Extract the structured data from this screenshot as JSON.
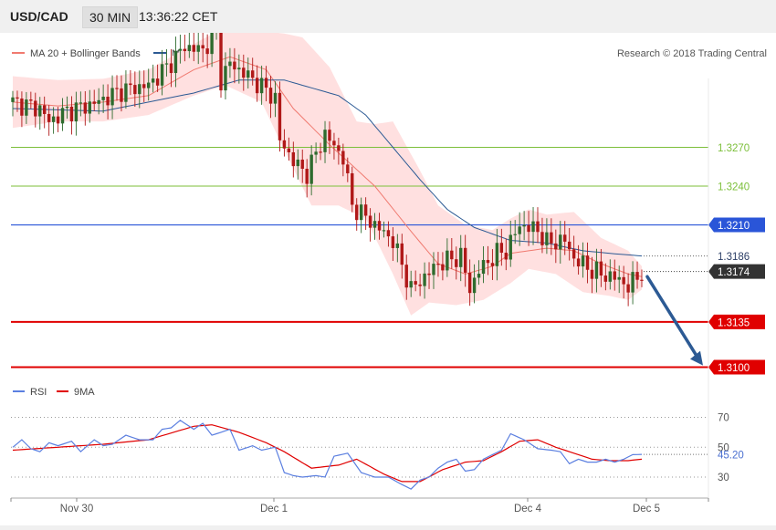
{
  "header": {
    "symbol": "USD/CAD",
    "interval": "30 MIN",
    "time": "13:36:22 CET"
  },
  "legend": {
    "ma20_bb": "MA 20 + Bollinger Bands",
    "ma50": "MA 50",
    "copyright": "Research © 2018 Trading Central"
  },
  "rsi_legend": {
    "rsi": "RSI",
    "ma9": "9MA"
  },
  "colors": {
    "candle_up": "#2e6b2e",
    "candle_down": "#b01818",
    "band": "#ffe0e0",
    "ma20": "#f07a70",
    "ma50": "#2c5a94",
    "support": "#e00000",
    "resistance": "#7cbf3a",
    "pivot": "#2a55d8",
    "forecast": "#2c5a94",
    "rsi": "#5b7fe0",
    "rsi_ma": "#e00000"
  },
  "chart_data": [
    {
      "type": "candlestick",
      "title": "USD/CAD 30 MIN",
      "x_ticks": [
        "Nov 30",
        "Dec 1",
        "Dec 4",
        "Dec 5"
      ],
      "ylim": [
        1.3092,
        1.3378
      ],
      "horizontal_levels": [
        {
          "value": 1.327,
          "label": "1.3270",
          "kind": "resistance"
        },
        {
          "value": 1.324,
          "label": "1.3240",
          "kind": "resistance"
        },
        {
          "value": 1.321,
          "label": "1.3210",
          "kind": "pivot"
        },
        {
          "value": 1.3186,
          "label": "1.3186",
          "kind": "ma50"
        },
        {
          "value": 1.3174,
          "label": "1.3174",
          "kind": "last"
        },
        {
          "value": 1.3135,
          "label": "1.3135",
          "kind": "support"
        },
        {
          "value": 1.31,
          "label": "1.3100",
          "kind": "support"
        }
      ],
      "forecast": {
        "from": 1.317,
        "to": 1.3102
      },
      "candle_keypoints": [
        [
          0,
          1.3305
        ],
        [
          6,
          1.33
        ],
        [
          8,
          1.329
        ],
        [
          12,
          1.3298
        ],
        [
          18,
          1.3304
        ],
        [
          24,
          1.3314
        ],
        [
          30,
          1.3318
        ],
        [
          34,
          1.3332
        ],
        [
          38,
          1.3348
        ],
        [
          42,
          1.3345
        ],
        [
          45,
          1.336
        ],
        [
          46,
          1.3322
        ],
        [
          48,
          1.3335
        ],
        [
          52,
          1.3325
        ],
        [
          54,
          1.332
        ],
        [
          58,
          1.3308
        ],
        [
          59,
          1.3275
        ],
        [
          63,
          1.3255
        ],
        [
          65,
          1.325
        ],
        [
          69,
          1.328
        ],
        [
          73,
          1.3262
        ],
        [
          75,
          1.3225
        ],
        [
          80,
          1.321
        ],
        [
          84,
          1.3198
        ],
        [
          88,
          1.316
        ],
        [
          94,
          1.318
        ],
        [
          99,
          1.3186
        ],
        [
          101,
          1.316
        ],
        [
          103,
          1.3175
        ],
        [
          107,
          1.3188
        ],
        [
          109,
          1.319
        ],
        [
          112,
          1.321
        ],
        [
          116,
          1.3206
        ],
        [
          118,
          1.3196
        ],
        [
          122,
          1.3198
        ],
        [
          124,
          1.3184
        ],
        [
          128,
          1.3175
        ],
        [
          130,
          1.3172
        ],
        [
          134,
          1.3168
        ],
        [
          136,
          1.3162
        ],
        [
          139,
          1.3174
        ]
      ],
      "ma20_keypoints": [
        [
          0,
          1.3305
        ],
        [
          10,
          1.3302
        ],
        [
          20,
          1.3305
        ],
        [
          30,
          1.331
        ],
        [
          40,
          1.333
        ],
        [
          48,
          1.334
        ],
        [
          56,
          1.333
        ],
        [
          62,
          1.33
        ],
        [
          70,
          1.3272
        ],
        [
          80,
          1.324
        ],
        [
          88,
          1.3205
        ],
        [
          94,
          1.318
        ],
        [
          100,
          1.3172
        ],
        [
          106,
          1.3178
        ],
        [
          110,
          1.3188
        ],
        [
          118,
          1.3192
        ],
        [
          124,
          1.319
        ],
        [
          130,
          1.318
        ],
        [
          136,
          1.3172
        ],
        [
          139,
          1.317
        ]
      ],
      "bb_upper_keypoints": [
        [
          0,
          1.3325
        ],
        [
          10,
          1.3322
        ],
        [
          20,
          1.3323
        ],
        [
          30,
          1.333
        ],
        [
          40,
          1.335
        ],
        [
          47,
          1.3363
        ],
        [
          55,
          1.336
        ],
        [
          60,
          1.3358
        ],
        [
          64,
          1.3355
        ],
        [
          70,
          1.3332
        ],
        [
          76,
          1.329
        ],
        [
          80,
          1.3288
        ],
        [
          84,
          1.329
        ],
        [
          90,
          1.3252
        ],
        [
          94,
          1.3225
        ],
        [
          100,
          1.321
        ],
        [
          106,
          1.3206
        ],
        [
          110,
          1.3215
        ],
        [
          114,
          1.3222
        ],
        [
          118,
          1.3218
        ],
        [
          124,
          1.322
        ],
        [
          130,
          1.32
        ],
        [
          136,
          1.319
        ],
        [
          139,
          1.3178
        ]
      ],
      "bb_lower_keypoints": [
        [
          0,
          1.3285
        ],
        [
          10,
          1.329
        ],
        [
          20,
          1.329
        ],
        [
          30,
          1.3295
        ],
        [
          40,
          1.331
        ],
        [
          47,
          1.3318
        ],
        [
          55,
          1.3305
        ],
        [
          60,
          1.3268
        ],
        [
          66,
          1.3225
        ],
        [
          72,
          1.3225
        ],
        [
          78,
          1.3215
        ],
        [
          84,
          1.3172
        ],
        [
          88,
          1.314
        ],
        [
          92,
          1.315
        ],
        [
          98,
          1.3148
        ],
        [
          104,
          1.3152
        ],
        [
          110,
          1.3165
        ],
        [
          114,
          1.3176
        ],
        [
          120,
          1.3172
        ],
        [
          126,
          1.3158
        ],
        [
          132,
          1.3155
        ],
        [
          136,
          1.3152
        ],
        [
          139,
          1.316
        ]
      ],
      "ma50_keypoints": [
        [
          0,
          1.33
        ],
        [
          20,
          1.3298
        ],
        [
          30,
          1.3305
        ],
        [
          40,
          1.3312
        ],
        [
          50,
          1.3322
        ],
        [
          60,
          1.3322
        ],
        [
          66,
          1.3316
        ],
        [
          72,
          1.331
        ],
        [
          78,
          1.3295
        ],
        [
          84,
          1.327
        ],
        [
          90,
          1.3245
        ],
        [
          96,
          1.3222
        ],
        [
          102,
          1.3208
        ],
        [
          110,
          1.3198
        ],
        [
          118,
          1.3196
        ],
        [
          126,
          1.319
        ],
        [
          132,
          1.3188
        ],
        [
          139,
          1.3186
        ]
      ]
    },
    {
      "type": "line",
      "title": "RSI",
      "series_names": [
        "RSI",
        "9MA"
      ],
      "y_ticks": [
        70,
        50,
        30
      ],
      "ylim": [
        18,
        80
      ],
      "last_value": "45.20",
      "rsi_keypoints": [
        [
          0,
          50
        ],
        [
          2,
          55
        ],
        [
          4,
          49
        ],
        [
          6,
          47
        ],
        [
          8,
          53
        ],
        [
          10,
          51
        ],
        [
          13,
          54
        ],
        [
          15,
          47
        ],
        [
          18,
          55
        ],
        [
          20,
          51
        ],
        [
          22,
          52
        ],
        [
          25,
          58
        ],
        [
          28,
          55
        ],
        [
          31,
          55
        ],
        [
          33,
          62
        ],
        [
          35,
          63
        ],
        [
          37,
          68
        ],
        [
          40,
          62
        ],
        [
          42,
          66
        ],
        [
          44,
          58
        ],
        [
          46,
          60
        ],
        [
          48,
          62
        ],
        [
          50,
          48
        ],
        [
          53,
          51
        ],
        [
          55,
          48
        ],
        [
          58,
          50
        ],
        [
          60,
          33
        ],
        [
          62,
          31
        ],
        [
          64,
          30
        ],
        [
          67,
          31
        ],
        [
          69,
          30
        ],
        [
          71,
          44
        ],
        [
          74,
          46
        ],
        [
          77,
          33
        ],
        [
          80,
          30
        ],
        [
          83,
          30
        ],
        [
          86,
          25
        ],
        [
          88,
          22
        ],
        [
          90,
          28
        ],
        [
          92,
          30
        ],
        [
          94,
          36
        ],
        [
          96,
          40
        ],
        [
          98,
          42
        ],
        [
          100,
          34
        ],
        [
          102,
          35
        ],
        [
          104,
          42
        ],
        [
          106,
          45
        ],
        [
          108,
          48
        ],
        [
          110,
          59
        ],
        [
          113,
          55
        ],
        [
          116,
          49
        ],
        [
          119,
          48
        ],
        [
          121,
          47
        ],
        [
          123,
          39
        ],
        [
          125,
          42
        ],
        [
          127,
          40
        ],
        [
          129,
          40
        ],
        [
          131,
          42
        ],
        [
          133,
          40
        ],
        [
          135,
          42
        ],
        [
          137,
          45
        ],
        [
          139,
          45.2
        ]
      ],
      "ma_keypoints": [
        [
          0,
          48
        ],
        [
          10,
          50
        ],
        [
          20,
          52
        ],
        [
          30,
          55
        ],
        [
          40,
          64
        ],
        [
          44,
          65
        ],
        [
          50,
          60
        ],
        [
          56,
          53
        ],
        [
          60,
          47
        ],
        [
          66,
          36
        ],
        [
          72,
          38
        ],
        [
          76,
          42
        ],
        [
          82,
          32
        ],
        [
          86,
          27
        ],
        [
          90,
          27
        ],
        [
          95,
          35
        ],
        [
          100,
          40
        ],
        [
          104,
          41
        ],
        [
          108,
          47
        ],
        [
          112,
          54
        ],
        [
          116,
          55
        ],
        [
          120,
          50
        ],
        [
          124,
          46
        ],
        [
          128,
          42
        ],
        [
          132,
          41
        ],
        [
          136,
          41
        ],
        [
          139,
          42
        ]
      ]
    }
  ]
}
